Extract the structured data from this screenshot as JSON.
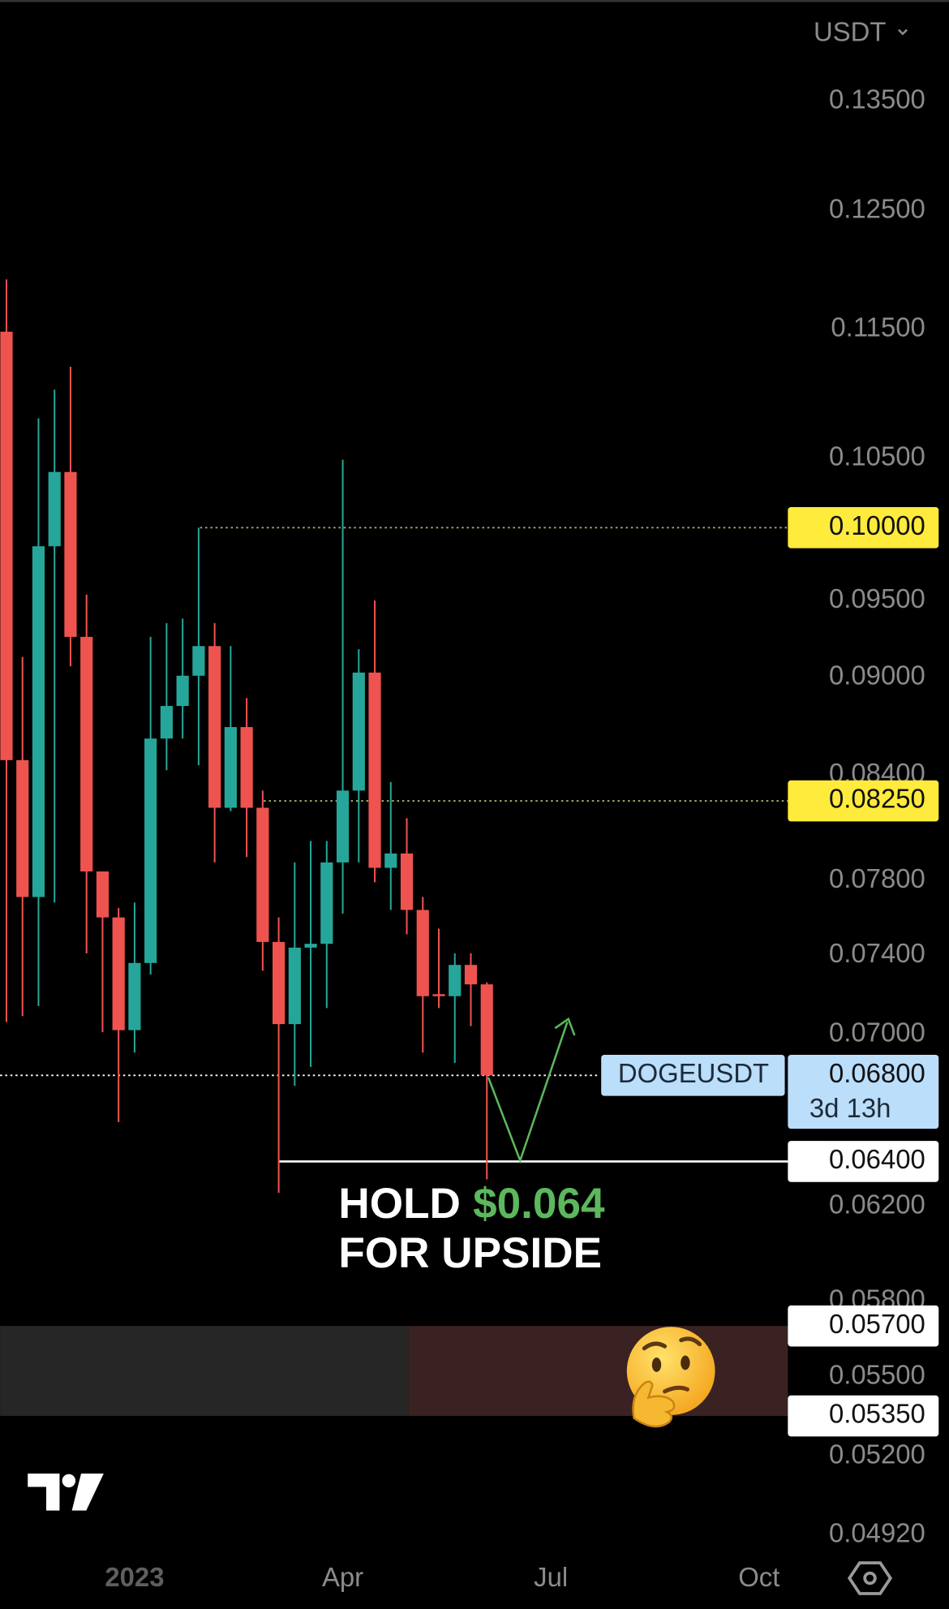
{
  "chart_data": {
    "type": "candlestick",
    "currency": "USDT",
    "symbol": "DOGEUSDT",
    "countdown": "3d 13h",
    "log_scale": true,
    "grid": false,
    "up_color": "#26a69a",
    "down_color": "#ef5350",
    "ylim": [
      0.0467,
      0.145
    ],
    "yticks": [
      {
        "value": 0.135,
        "label": "0.13500"
      },
      {
        "value": 0.125,
        "label": "0.12500"
      },
      {
        "value": 0.115,
        "label": "0.11500"
      },
      {
        "value": 0.105,
        "label": "0.10500"
      },
      {
        "value": 0.095,
        "label": "0.09500"
      },
      {
        "value": 0.09,
        "label": "0.09000"
      },
      {
        "value": 0.084,
        "label": "0.08400"
      },
      {
        "value": 0.078,
        "label": "0.07800"
      },
      {
        "value": 0.074,
        "label": "0.07400"
      },
      {
        "value": 0.07,
        "label": "0.07000"
      },
      {
        "value": 0.062,
        "label": "0.06200"
      },
      {
        "value": 0.058,
        "label": "0.05800"
      },
      {
        "value": 0.055,
        "label": "0.05500"
      },
      {
        "value": 0.052,
        "label": "0.05200"
      },
      {
        "value": 0.0492,
        "label": "0.04920"
      }
    ],
    "xlim": [
      -0.4,
      48.8
    ],
    "xticks": [
      {
        "value": 8,
        "label": "2023"
      },
      {
        "value": 21,
        "label": "Apr"
      },
      {
        "value": 34,
        "label": "Jul"
      },
      {
        "value": 47,
        "label": "Oct"
      }
    ],
    "open": [
      0.1148,
      0.0849,
      0.0771,
      0.0987,
      0.104,
      0.0926,
      0.0785,
      0.076,
      0.0702,
      0.0736,
      0.0862,
      0.0882,
      0.0901,
      0.092,
      0.0821,
      0.0869,
      0.0821,
      0.0747,
      0.0705,
      0.0744,
      0.0746,
      0.079,
      0.0831,
      0.0903,
      0.0787,
      0.0795,
      0.0764,
      0.072,
      0.0719,
      0.0735,
      0.0725
    ],
    "high": [
      0.1191,
      0.0913,
      0.108,
      0.1102,
      0.112,
      0.0954,
      0.0785,
      0.0765,
      0.0768,
      0.0926,
      0.0935,
      0.0938,
      0.1,
      0.0935,
      0.092,
      0.0887,
      0.0831,
      0.076,
      0.079,
      0.0802,
      0.0802,
      0.1049,
      0.0918,
      0.095,
      0.0836,
      0.0815,
      0.0771,
      0.0754,
      0.0741,
      0.0741,
      0.0726
    ],
    "low": [
      0.0706,
      0.0709,
      0.0714,
      0.0768,
      0.0907,
      0.0741,
      0.0701,
      0.0658,
      0.0691,
      0.073,
      0.0843,
      0.0862,
      0.0846,
      0.079,
      0.0819,
      0.0793,
      0.0732,
      0.0626,
      0.0675,
      0.0684,
      0.0713,
      0.0762,
      0.079,
      0.0779,
      0.0764,
      0.0751,
      0.0691,
      0.0713,
      0.0686,
      0.0704,
      0.0632
    ],
    "close": [
      0.0849,
      0.0771,
      0.0987,
      0.104,
      0.0926,
      0.0785,
      0.076,
      0.0702,
      0.0736,
      0.0862,
      0.0882,
      0.0901,
      0.092,
      0.0821,
      0.0869,
      0.0821,
      0.0747,
      0.0705,
      0.0744,
      0.0746,
      0.079,
      0.0831,
      0.0903,
      0.0787,
      0.0795,
      0.0764,
      0.0719,
      0.0719,
      0.0735,
      0.0725,
      0.068
    ],
    "price_lines": [
      {
        "value": 0.1,
        "label": "0.10000",
        "color": "#ffeb3b",
        "line_color": "#a9aa6c",
        "style": "dotted"
      },
      {
        "value": 0.0825,
        "label": "0.08250",
        "color": "#ffeb3b",
        "line_color": "#a9aa6c",
        "style": "dotted"
      },
      {
        "value": 0.068,
        "label": "0.06800",
        "color": "#bbdefb",
        "line_color": "#ffffff",
        "style": "dotted",
        "current": true
      },
      {
        "value": 0.064,
        "label": "0.06400",
        "color": "#ffffff",
        "line_color": "#ffffff",
        "style": "solid"
      },
      {
        "value": 0.057,
        "label": "0.05700",
        "color": "#ffffff",
        "style": "none"
      },
      {
        "value": 0.0535,
        "label": "0.05350",
        "color": "#ffffff",
        "style": "none"
      }
    ],
    "zone_colors": [
      "#262626",
      "#3a2222"
    ],
    "annotation": {
      "line1": "HOLD",
      "price": "$0.064",
      "line2": "FOR UPSIDE",
      "price_color": "#5cb85c"
    }
  }
}
